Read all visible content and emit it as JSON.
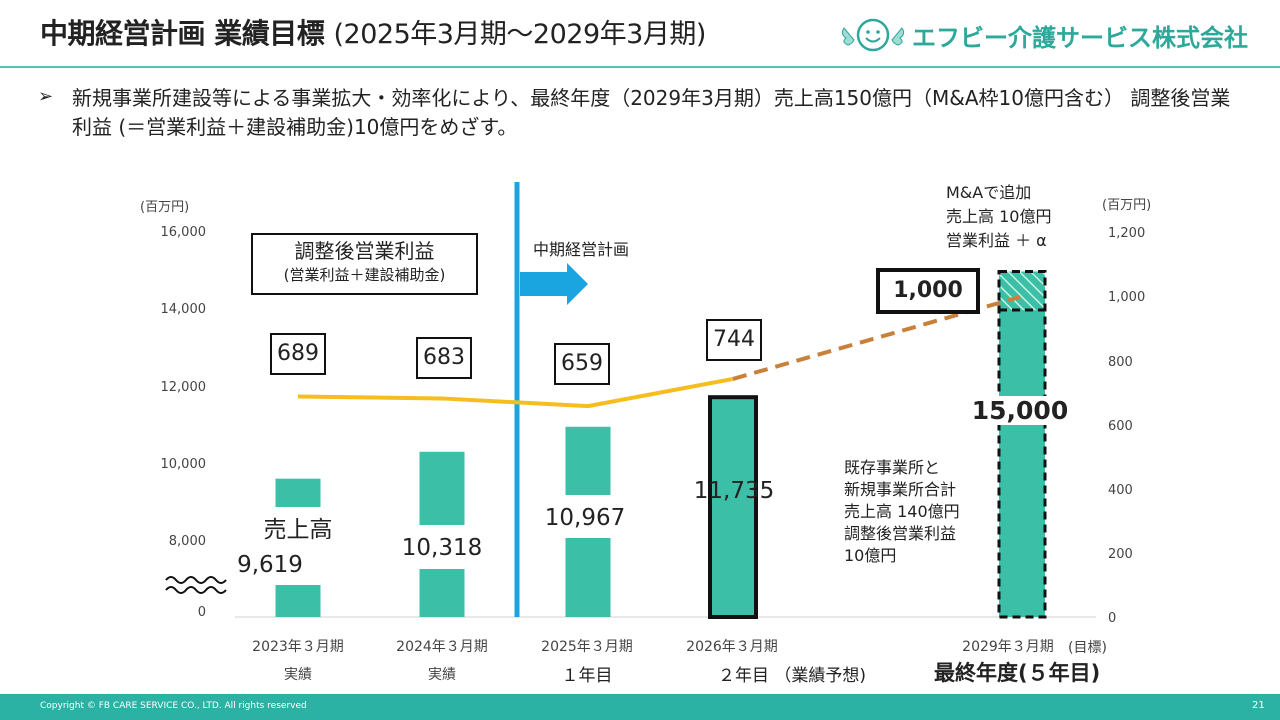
{
  "header": {
    "title_main": "中期経営計画 業績目標",
    "title_sub": "(2025年3月期〜2029年3月期)",
    "company_name": "エフビー介護サービス株式会社",
    "accent_color": "#2bb2a4"
  },
  "lead": {
    "bullet": "➢",
    "text": "新規事業所建設等による事業拡大・効率化により、最終年度（2029年3月期）売上高150億円（M&A枠10億円含む） 調整後営業利益 (＝営業利益＋建設補助金)10億円をめざす。"
  },
  "chart_data": {
    "type": "bar",
    "left_axis_unit": "(百万円)",
    "right_axis_unit": "(百万円)",
    "left_ticks": [
      "0",
      "8,000",
      "10,000",
      "12,000",
      "14,000",
      "16,000"
    ],
    "right_ticks": [
      "0",
      "200",
      "400",
      "600",
      "800",
      "1,000",
      "1,200"
    ],
    "categories": [
      "2023年３月期",
      "2024年３月期",
      "2025年３月期",
      "2026年３月期",
      "2029年３月期"
    ],
    "category_sublabels": [
      "実績",
      "実績",
      "１年目",
      "２年目 （業績予想)",
      ""
    ],
    "target_tag": "(目標)",
    "final_label": "最終年度(５年目)",
    "sales": [
      9619,
      10318,
      10967,
      11735,
      15000
    ],
    "sales_labels": [
      "9,619",
      "10,318",
      "10,967",
      "11,735",
      "15,000"
    ],
    "sales_series_label": "売上高",
    "ma_portion_sales": 1000,
    "adjusted_operating_profit": [
      689,
      683,
      659,
      744,
      1000
    ],
    "profit_labels": [
      "689",
      "683",
      "659",
      "744",
      "1,000"
    ],
    "legend_title": "調整後営業利益",
    "legend_sub": "(営業利益＋建設補助金)",
    "plan_label": "中期経営計画",
    "ma_note": [
      "M&Aで追加",
      "売上高 10億円",
      "営業利益 ＋ α"
    ],
    "existing_note": [
      "既存事業所と",
      "新規事業所合計",
      "売上高 140億円",
      "調整後営業利益",
      "10億円"
    ],
    "left_axis_break": true,
    "colors": {
      "bar": "#3cbfa7",
      "line": "#f5bd1f",
      "forecast_line": "#c8803a",
      "plan_line": "#1aa4e0"
    }
  },
  "footer": {
    "copyright": "Copyright © FB CARE SERVICE CO., LTD. All rights reserved",
    "page": "21"
  }
}
